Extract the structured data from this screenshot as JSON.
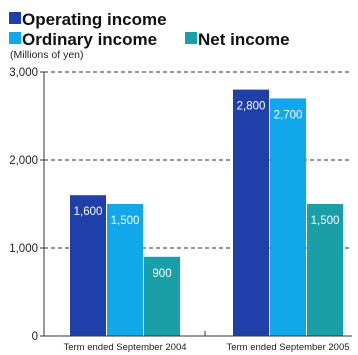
{
  "chart_data": {
    "type": "bar",
    "categories": [
      "Term ended September 2004",
      "Term ended September 2005"
    ],
    "series": [
      {
        "name": "Operating income",
        "values": [
          1600,
          2800
        ],
        "color": "#1e40a8"
      },
      {
        "name": "Ordinary income",
        "values": [
          1500,
          2700
        ],
        "color": "#12a7ea"
      },
      {
        "name": "Net income",
        "values": [
          900,
          1500
        ],
        "color": "#1a9ea8"
      }
    ],
    "data_labels": [
      [
        "1,600",
        "1,500",
        "900"
      ],
      [
        "2,800",
        "2,700",
        "1,500"
      ]
    ],
    "ylabel": "(Millions of yen)",
    "ylim": [
      0,
      3000
    ],
    "yticks": [
      0,
      1000,
      2000,
      3000
    ],
    "ytick_labels": [
      "0",
      "1,000",
      "2,000",
      "3,000"
    ],
    "grid": "dashed horizontal",
    "legend_position": "top-left"
  }
}
